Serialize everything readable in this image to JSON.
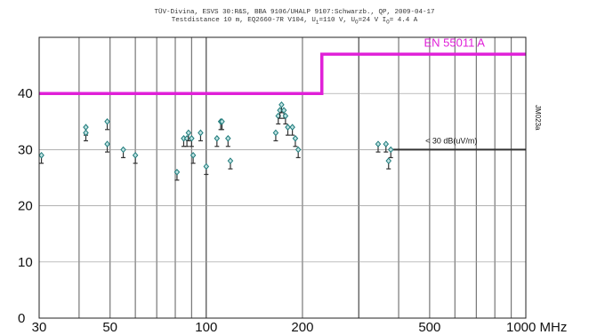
{
  "header": {
    "line1": "TÜV-Divina, ESVS 30:R&S, BBA 9106/UHALP 9107:Schwarzb., QP, 2009-04-17",
    "line2_a": "Testdistance 10 m, EQ2660-7R V104, U",
    "line2_a_sub": "i",
    "line2_b": "=110 V, U",
    "line2_b_sub": "O",
    "line2_c": "=24 V I",
    "line2_c_sub": "O",
    "line2_d": "= 4.4 A"
  },
  "side_label": "JM023a",
  "chart_data": {
    "type": "scatter",
    "x_scale": "log",
    "xlim": [
      30,
      1000
    ],
    "ylim": [
      0,
      50
    ],
    "x_unit": "MHz",
    "x_ticks": [
      30,
      50,
      100,
      200,
      500,
      1000
    ],
    "x_tick_labels": [
      "30",
      "50",
      "100",
      "200",
      "500",
      "1000 MHz"
    ],
    "y_ticks": [
      0,
      10,
      20,
      30,
      40
    ],
    "y_tick_labels": [
      "0",
      "10",
      "20",
      "30",
      "40"
    ],
    "grid": true,
    "colors": {
      "limit": "#e020d8",
      "reference": "#333333",
      "points": "#1e7a7a",
      "grid": "#777777"
    },
    "limit_line": {
      "name": "EN 55011 A",
      "segments": [
        {
          "x": [
            30,
            230
          ],
          "y": 40
        },
        {
          "x": [
            230,
            1000
          ],
          "y": 47
        }
      ]
    },
    "reference_line": {
      "name": "< 30 dB(uV/m)",
      "x": [
        385,
        1000
      ],
      "y": 30
    },
    "series": [
      {
        "values": [
          {
            "x": 30.5,
            "y": 29
          },
          {
            "x": 42,
            "y": 34
          },
          {
            "x": 42,
            "y": 33
          },
          {
            "x": 49,
            "y": 35
          },
          {
            "x": 49,
            "y": 31
          },
          {
            "x": 55,
            "y": 30
          },
          {
            "x": 60,
            "y": 29
          },
          {
            "x": 81,
            "y": 26
          },
          {
            "x": 85,
            "y": 32
          },
          {
            "x": 87,
            "y": 32
          },
          {
            "x": 88,
            "y": 33
          },
          {
            "x": 90,
            "y": 32
          },
          {
            "x": 91,
            "y": 29
          },
          {
            "x": 96,
            "y": 33
          },
          {
            "x": 100,
            "y": 27
          },
          {
            "x": 108,
            "y": 32
          },
          {
            "x": 111,
            "y": 35
          },
          {
            "x": 112,
            "y": 35
          },
          {
            "x": 117,
            "y": 32
          },
          {
            "x": 119,
            "y": 28
          },
          {
            "x": 165,
            "y": 33
          },
          {
            "x": 168,
            "y": 36
          },
          {
            "x": 170,
            "y": 37
          },
          {
            "x": 172,
            "y": 38
          },
          {
            "x": 175,
            "y": 37
          },
          {
            "x": 177,
            "y": 36
          },
          {
            "x": 180,
            "y": 34
          },
          {
            "x": 186,
            "y": 34
          },
          {
            "x": 190,
            "y": 32
          },
          {
            "x": 194,
            "y": 30
          },
          {
            "x": 345,
            "y": 31
          },
          {
            "x": 365,
            "y": 31
          },
          {
            "x": 372,
            "y": 28
          },
          {
            "x": 378,
            "y": 30
          }
        ]
      }
    ]
  }
}
